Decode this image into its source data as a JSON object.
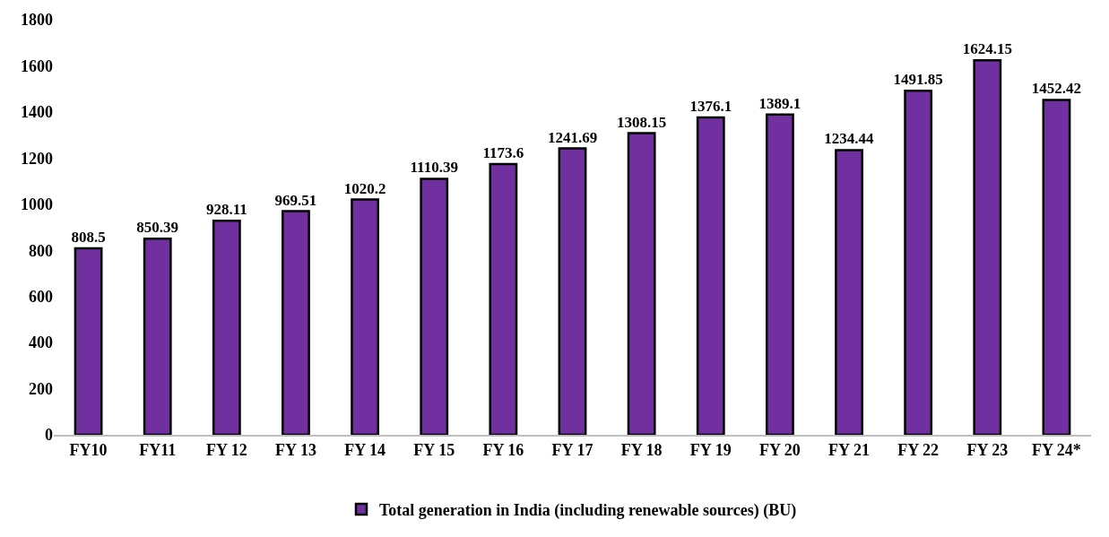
{
  "chart_data": {
    "type": "bar",
    "categories": [
      "FY10",
      "FY11",
      "FY 12",
      "FY 13",
      "FY 14",
      "FY 15",
      "FY 16",
      "FY 17",
      "FY 18",
      "FY 19",
      "FY 20",
      "FY 21",
      "FY 22",
      "FY 23",
      "FY 24*"
    ],
    "series": [
      {
        "name": "Total generation in India (including renewable sources) (BU)",
        "color": "#7030a0",
        "values": [
          808.5,
          850.39,
          928.11,
          969.51,
          1020.2,
          1110.39,
          1173.6,
          1241.69,
          1308.15,
          1376.1,
          1389.1,
          1234.44,
          1491.85,
          1624.15,
          1452.42
        ]
      }
    ],
    "ylim": [
      0,
      1800
    ],
    "yticks": [
      0,
      200,
      400,
      600,
      800,
      1000,
      1200,
      1400,
      1600,
      1800
    ],
    "data_labels": true,
    "legend": "bottom"
  }
}
